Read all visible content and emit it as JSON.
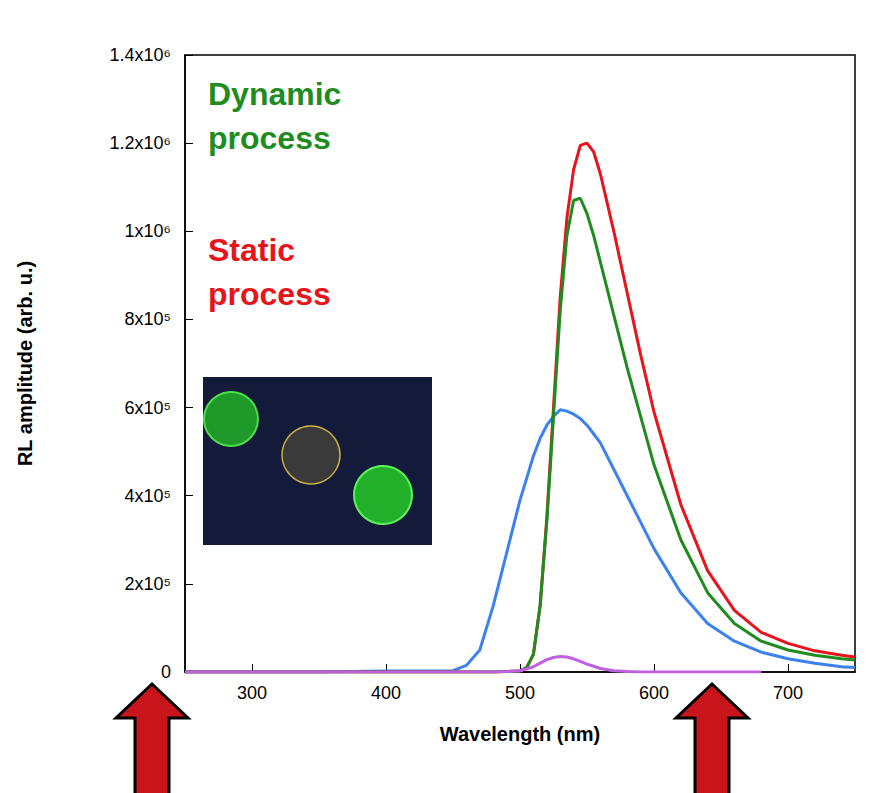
{
  "chart_data": {
    "type": "line",
    "x_label": "Wavelength (nm)",
    "y_label": "RL amplitude (arb. u.)",
    "annotations": [
      {
        "text": "Dynamic process",
        "color": "#1e8c1e"
      },
      {
        "text": "Static process",
        "color": "#e8141b"
      }
    ],
    "x": [
      250,
      300,
      350,
      400,
      450,
      460,
      470,
      480,
      490,
      500,
      505,
      510,
      515,
      520,
      525,
      530,
      535,
      540,
      545,
      550,
      555,
      560,
      570,
      580,
      590,
      600,
      620,
      640,
      660,
      680,
      700,
      720,
      740,
      750
    ],
    "series": [
      {
        "color": "#3b82f0",
        "values": [
          0,
          0,
          0,
          2000,
          3000,
          15000,
          50000,
          150000,
          270000,
          390000,
          440000,
          490000,
          530000,
          560000,
          580000,
          595000,
          592000,
          585000,
          575000,
          560000,
          540000,
          520000,
          460000,
          400000,
          340000,
          280000,
          180000,
          110000,
          70000,
          45000,
          30000,
          20000,
          12000,
          10000
        ]
      },
      {
        "color": "#e8141b",
        "values": [
          0,
          0,
          0,
          0,
          0,
          0,
          0,
          0,
          1000,
          2000,
          10000,
          40000,
          150000,
          350000,
          600000,
          850000,
          1030000,
          1140000,
          1195000,
          1200000,
          1180000,
          1130000,
          1000000,
          860000,
          720000,
          590000,
          380000,
          230000,
          140000,
          90000,
          65000,
          48000,
          38000,
          34000
        ]
      },
      {
        "color": "#1e8c1e",
        "values": [
          0,
          0,
          0,
          0,
          0,
          0,
          0,
          0,
          1000,
          2000,
          10000,
          40000,
          150000,
          340000,
          580000,
          820000,
          990000,
          1070000,
          1075000,
          1040000,
          990000,
          930000,
          810000,
          690000,
          580000,
          470000,
          300000,
          180000,
          110000,
          70000,
          50000,
          38000,
          30000,
          27000
        ]
      },
      {
        "color": "#c060e0",
        "values": [
          0,
          0,
          0,
          0,
          0,
          0,
          0,
          0,
          1000,
          3000,
          7000,
          12000,
          20000,
          28000,
          33000,
          35000,
          34000,
          30000,
          24000,
          18000,
          13000,
          8000,
          3000,
          1000,
          0,
          0,
          0,
          0,
          0,
          0,
          null,
          null,
          null,
          null
        ]
      }
    ],
    "xlim": [
      250,
      750
    ],
    "xticks": [
      300,
      400,
      500,
      600,
      700
    ],
    "ylim": [
      0,
      1400000
    ],
    "yticks": [
      0,
      {
        "value": 200000,
        "label": "2x10⁵"
      },
      {
        "value": 400000,
        "label": "4x10⁵"
      },
      {
        "value": 600000,
        "label": "6x10⁵"
      },
      {
        "value": 800000,
        "label": "8x10⁵"
      },
      {
        "value": 1000000,
        "label": "1x10⁶"
      },
      {
        "value": 1200000,
        "label": "1.2x10⁶"
      },
      {
        "value": 1400000,
        "label": "1.4x10⁶"
      }
    ],
    "grid": false
  }
}
